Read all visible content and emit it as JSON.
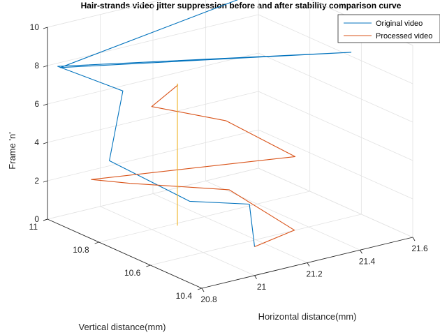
{
  "chart_data": {
    "type": "line",
    "title": "Hair-strands video jitter suppression before and after stability comparison curve",
    "xlabel": "Horizontal distance(mm)",
    "ylabel": "Vertical distance(mm)",
    "zlabel": "Frame 'n'",
    "x_ticks": [
      "20.8",
      "21",
      "21.2",
      "21.4",
      "21.6"
    ],
    "y_ticks": [
      "10.4",
      "10.6",
      "10.8",
      "11"
    ],
    "z_ticks": [
      "0",
      "2",
      "4",
      "6",
      "8",
      "10"
    ],
    "xlim": [
      20.8,
      21.6
    ],
    "ylim": [
      10.4,
      11
    ],
    "zlim": [
      0,
      10
    ],
    "grid": true,
    "legend_position": "top-right",
    "series": [
      {
        "name": "Original video",
        "color": "#0072BD",
        "x": [
          21.0,
          21.0,
          20.9,
          20.82,
          20.92,
          20.8,
          21.6,
          20.8,
          21.6
        ],
        "y": [
          10.4,
          10.42,
          10.55,
          10.78,
          10.83,
          10.96,
          10.64,
          10.95,
          10.9
        ],
        "z": [
          1.5,
          3.6,
          3.3,
          4.3,
          7.3,
          8.2,
          8.2,
          8.2,
          10.3
        ]
      },
      {
        "name": "Processed video",
        "color": "#D95319",
        "x": [
          21.0,
          21.2,
          21.05,
          20.82,
          20.82,
          21.3,
          21.38,
          21.0,
          21.1
        ],
        "y": [
          10.4,
          10.45,
          10.55,
          10.7,
          10.85,
          10.55,
          10.9,
          10.8,
          10.8
        ],
        "z": [
          1.5,
          1.4,
          3.4,
          3.6,
          2.9,
          4.3,
          3.8,
          6.4,
          7.2
        ]
      },
      {
        "color": "#EDB120",
        "x": [
          21.0,
          21.0
        ],
        "y": [
          10.7,
          10.7
        ],
        "z": [
          0.8,
          8.2
        ]
      }
    ]
  }
}
